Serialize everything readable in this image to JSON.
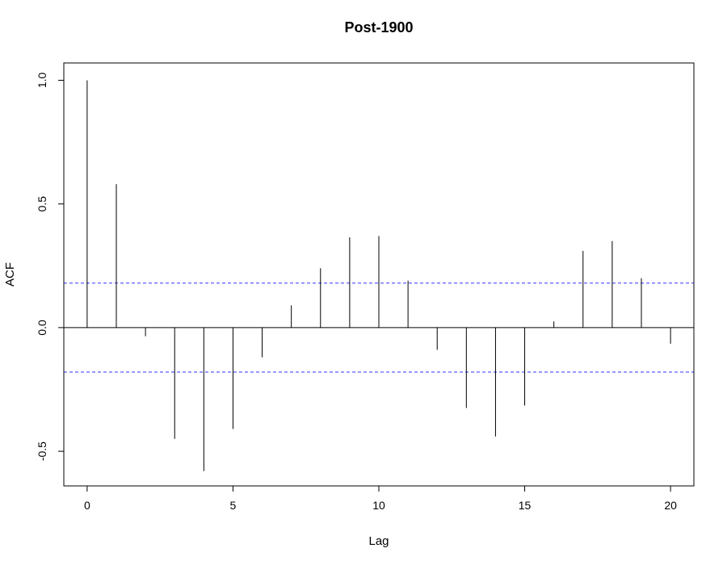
{
  "chart_data": {
    "type": "bar",
    "title": "Post-1900",
    "xlabel": "Lag",
    "ylabel": "ACF",
    "xlim": [
      -0.8,
      20.8
    ],
    "ylim": [
      -0.64,
      1.07
    ],
    "x_ticks": [
      "0",
      "5",
      "10",
      "15",
      "20"
    ],
    "y_ticks": [
      "-0.5",
      "0.0",
      "0.5",
      "1.0"
    ],
    "lags": [
      0,
      1,
      2,
      3,
      4,
      5,
      6,
      7,
      8,
      9,
      10,
      11,
      12,
      13,
      14,
      15,
      16,
      17,
      18,
      19,
      20
    ],
    "values": [
      1.0,
      0.58,
      -0.035,
      -0.45,
      -0.58,
      -0.41,
      -0.12,
      0.09,
      0.24,
      0.365,
      0.37,
      0.19,
      -0.09,
      -0.325,
      -0.44,
      -0.315,
      0.025,
      0.31,
      0.35,
      0.2,
      -0.065
    ],
    "confidence_bound": 0.18,
    "confidence_color": "#3333ff",
    "bar_color": "#000000",
    "grid": false,
    "legend": "none"
  }
}
